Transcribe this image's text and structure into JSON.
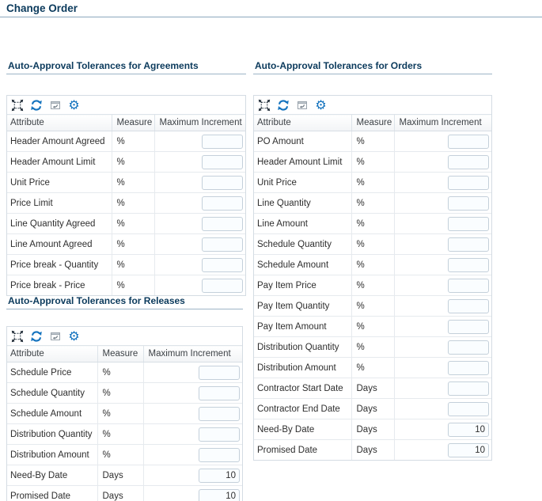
{
  "page": {
    "title": "Change Order"
  },
  "columns": {
    "attribute": "Attribute",
    "measure": "Measure",
    "maximum_increment": "Maximum Increment"
  },
  "toolbar_icons": [
    "detach-icon",
    "refresh-icon",
    "window-restore-icon",
    "settings-gear-icon"
  ],
  "colors": {
    "heading": "#0b3a5c",
    "icon_blue": "#1473be",
    "panel_border": "#d4dce3",
    "rule_blue_gray": "#8ca7bd"
  },
  "sections": [
    {
      "id": "agreements",
      "title": "Auto-Approval Tolerances for Agreements",
      "rows": [
        {
          "attribute": "Header Amount Agreed",
          "measure": "%",
          "maximum_increment": ""
        },
        {
          "attribute": "Header Amount Limit",
          "measure": "%",
          "maximum_increment": ""
        },
        {
          "attribute": "Unit Price",
          "measure": "%",
          "maximum_increment": ""
        },
        {
          "attribute": "Price Limit",
          "measure": "%",
          "maximum_increment": ""
        },
        {
          "attribute": "Line Quantity Agreed",
          "measure": "%",
          "maximum_increment": ""
        },
        {
          "attribute": "Line Amount Agreed",
          "measure": "%",
          "maximum_increment": ""
        },
        {
          "attribute": "Price break - Quantity",
          "measure": "%",
          "maximum_increment": ""
        },
        {
          "attribute": "Price break - Price",
          "measure": "%",
          "maximum_increment": ""
        }
      ]
    },
    {
      "id": "orders",
      "title": "Auto-Approval Tolerances for Orders",
      "rows": [
        {
          "attribute": "PO Amount",
          "measure": "%",
          "maximum_increment": ""
        },
        {
          "attribute": "Header Amount Limit",
          "measure": "%",
          "maximum_increment": ""
        },
        {
          "attribute": "Unit Price",
          "measure": "%",
          "maximum_increment": ""
        },
        {
          "attribute": "Line Quantity",
          "measure": "%",
          "maximum_increment": ""
        },
        {
          "attribute": "Line Amount",
          "measure": "%",
          "maximum_increment": ""
        },
        {
          "attribute": "Schedule Quantity",
          "measure": "%",
          "maximum_increment": ""
        },
        {
          "attribute": "Schedule Amount",
          "measure": "%",
          "maximum_increment": ""
        },
        {
          "attribute": "Pay Item Price",
          "measure": "%",
          "maximum_increment": ""
        },
        {
          "attribute": "Pay Item Quantity",
          "measure": "%",
          "maximum_increment": ""
        },
        {
          "attribute": "Pay Item Amount",
          "measure": "%",
          "maximum_increment": ""
        },
        {
          "attribute": "Distribution Quantity",
          "measure": "%",
          "maximum_increment": ""
        },
        {
          "attribute": "Distribution Amount",
          "measure": "%",
          "maximum_increment": ""
        },
        {
          "attribute": "Contractor Start Date",
          "measure": "Days",
          "maximum_increment": ""
        },
        {
          "attribute": "Contractor End Date",
          "measure": "Days",
          "maximum_increment": ""
        },
        {
          "attribute": "Need-By Date",
          "measure": "Days",
          "maximum_increment": "10"
        },
        {
          "attribute": "Promised Date",
          "measure": "Days",
          "maximum_increment": "10"
        }
      ]
    },
    {
      "id": "releases",
      "title": "Auto-Approval Tolerances for Releases",
      "rows": [
        {
          "attribute": "Schedule Price",
          "measure": "%",
          "maximum_increment": ""
        },
        {
          "attribute": "Schedule Quantity",
          "measure": "%",
          "maximum_increment": ""
        },
        {
          "attribute": "Schedule Amount",
          "measure": "%",
          "maximum_increment": ""
        },
        {
          "attribute": "Distribution Quantity",
          "measure": "%",
          "maximum_increment": ""
        },
        {
          "attribute": "Distribution Amount",
          "measure": "%",
          "maximum_increment": ""
        },
        {
          "attribute": "Need-By Date",
          "measure": "Days",
          "maximum_increment": "10"
        },
        {
          "attribute": "Promised Date",
          "measure": "Days",
          "maximum_increment": "10"
        }
      ]
    }
  ]
}
